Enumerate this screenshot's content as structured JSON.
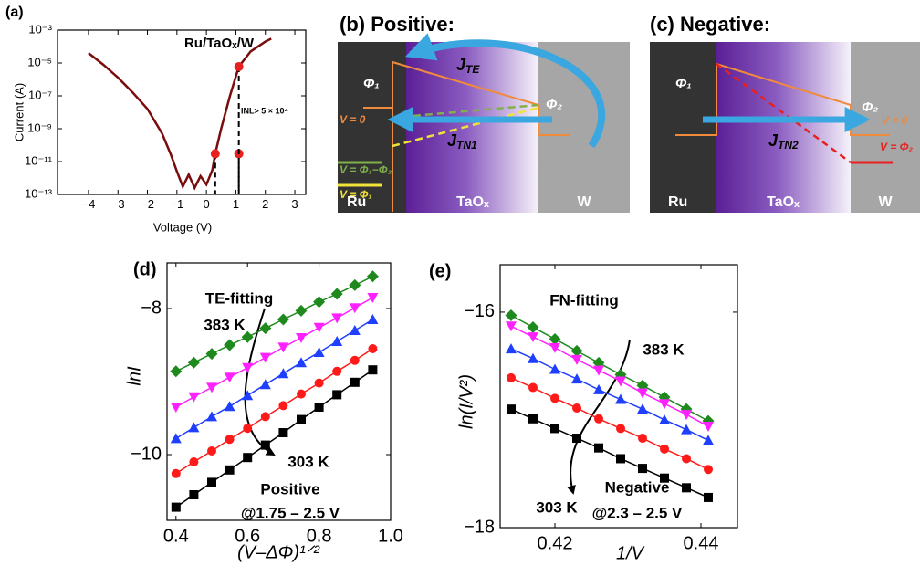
{
  "chart_data": [
    {
      "type": "line",
      "label": "(a)",
      "x_label": "Voltage (V)",
      "y_label": "Current (A)",
      "log_y": true,
      "xlim": [
        -5.05,
        3.37
      ],
      "ylim": [
        1e-13,
        0.001
      ],
      "xticks": [
        {
          "value": -4,
          "label": "−4"
        },
        {
          "value": -3,
          "label": "−3"
        },
        {
          "value": -2,
          "label": "−2"
        },
        {
          "value": -1,
          "label": "−1"
        },
        0,
        1,
        2,
        3
      ],
      "yticks": [
        {
          "value": 1e-13,
          "label": "10⁻¹³"
        },
        {
          "value": 1e-11,
          "label": "10⁻¹¹"
        },
        {
          "value": 1e-09,
          "label": "10⁻⁹"
        },
        {
          "value": 1e-07,
          "label": "10⁻⁷"
        },
        {
          "value": 1e-05,
          "label": "10⁻⁵"
        },
        {
          "value": 0.001,
          "label": "10⁻³"
        }
      ],
      "annotations": [
        "Ru/TaOₓ/W",
        "INL> 5 × 10⁴"
      ],
      "series": [
        {
          "color": "#7b0c0c",
          "x": [
            -4,
            -3.5,
            -3,
            -2.5,
            -2,
            -1.5,
            -1.2,
            -1,
            -0.8,
            -0.6,
            -0.4,
            -0.2,
            0,
            0.2,
            0.3,
            0.5,
            0.8,
            1.1,
            1.5,
            2,
            2.2
          ],
          "values": [
            4e-05,
            8e-06,
            1.3e-06,
            1.6e-07,
            1.6e-08,
            5e-10,
            2.5e-11,
            2.5e-12,
            3e-13,
            1.6e-12,
            2.5e-13,
            1.3e-12,
            4e-13,
            3e-12,
            3e-11,
            1e-09,
            1e-07,
            6e-06,
            5e-05,
            0.0002,
            0.0003
          ]
        },
        {
          "color": "#e8201f",
          "line": false,
          "marker": "circle",
          "x": [
            0.3,
            1.1,
            1.1
          ],
          "values": [
            3e-11,
            3e-11,
            6e-06
          ]
        }
      ]
    },
    {
      "type": "line",
      "label": "(d)",
      "x_label": "(V–ΔΦ)¹ᐟ²",
      "y_label": "lnI",
      "xlim": [
        0.375,
        1.0
      ],
      "ylim": [
        -10.9,
        -7.375
      ],
      "xticks": [
        0.4,
        0.6,
        0.8,
        {
          "value": 1.0,
          "label": "1.0"
        }
      ],
      "yticks": [
        {
          "value": -10,
          "label": "−10"
        },
        {
          "value": -8,
          "label": "−8"
        }
      ],
      "annotations": [
        "TE-fitting",
        "383 K",
        "303 K",
        "Positive",
        "@1.75 – 2.5  V"
      ],
      "x": [
        0.4,
        0.45,
        0.5,
        0.55,
        0.6,
        0.65,
        0.7,
        0.75,
        0.8,
        0.85,
        0.9,
        0.95
      ],
      "series": [
        {
          "color": "#1e8a1e",
          "marker": "diamond",
          "values": [
            -8.86,
            -8.74,
            -8.62,
            -8.5,
            -8.39,
            -8.27,
            -8.15,
            -8.03,
            -7.91,
            -7.8,
            -7.68,
            -7.56
          ]
        },
        {
          "color": "#ff22ff",
          "marker": "triangle-down",
          "values": [
            -9.35,
            -9.21,
            -9.08,
            -8.94,
            -8.81,
            -8.67,
            -8.53,
            -8.4,
            -8.26,
            -8.13,
            -7.99,
            -7.85
          ]
        },
        {
          "color": "#1f3fff",
          "marker": "triangle-up",
          "values": [
            -9.78,
            -9.63,
            -9.48,
            -9.34,
            -9.19,
            -9.04,
            -8.89,
            -8.74,
            -8.6,
            -8.45,
            -8.3,
            -8.15
          ]
        },
        {
          "color": "#ff1a1a",
          "marker": "circle",
          "values": [
            -10.26,
            -10.1,
            -9.95,
            -9.79,
            -9.64,
            -9.48,
            -9.33,
            -9.17,
            -9.02,
            -8.86,
            -8.71,
            -8.55
          ]
        },
        {
          "color": "#000000",
          "marker": "square",
          "values": [
            -10.72,
            -10.55,
            -10.38,
            -10.21,
            -10.04,
            -9.87,
            -9.7,
            -9.52,
            -9.35,
            -9.18,
            -9.01,
            -8.84
          ]
        }
      ]
    },
    {
      "type": "line",
      "label": "(e)",
      "x_label": "1/V",
      "y_label": "ln(I/V²)",
      "xlim": [
        0.4125,
        0.445
      ],
      "ylim": [
        -18,
        -15.56
      ],
      "xticks": [
        0.42,
        0.44
      ],
      "yticks": [
        {
          "value": -18,
          "label": "−18"
        },
        {
          "value": -16,
          "label": "−16"
        }
      ],
      "annotations": [
        "FN-fitting",
        "383 K",
        "303 K",
        "Negative",
        "@2.3 – 2.5  V"
      ],
      "x": [
        0.414,
        0.417,
        0.42,
        0.423,
        0.426,
        0.429,
        0.432,
        0.435,
        0.438,
        0.441
      ],
      "series": [
        {
          "color": "#1e8a1e",
          "marker": "diamond",
          "values": [
            -16.03,
            -16.14,
            -16.25,
            -16.36,
            -16.47,
            -16.58,
            -16.68,
            -16.79,
            -16.9,
            -17.01
          ]
        },
        {
          "color": "#ff22ff",
          "marker": "triangle-down",
          "values": [
            -16.13,
            -16.23,
            -16.33,
            -16.44,
            -16.54,
            -16.64,
            -16.75,
            -16.85,
            -16.95,
            -17.06
          ]
        },
        {
          "color": "#1f3fff",
          "marker": "triangle-up",
          "values": [
            -16.34,
            -16.43,
            -16.53,
            -16.62,
            -16.72,
            -16.81,
            -16.9,
            -17.0,
            -17.09,
            -17.19
          ]
        },
        {
          "color": "#ff1a1a",
          "marker": "circle",
          "values": [
            -16.61,
            -16.7,
            -16.8,
            -16.89,
            -16.99,
            -17.08,
            -17.17,
            -17.27,
            -17.36,
            -17.46
          ]
        },
        {
          "color": "#000000",
          "marker": "square",
          "values": [
            -16.9,
            -16.99,
            -17.08,
            -17.17,
            -17.26,
            -17.36,
            -17.45,
            -17.54,
            -17.63,
            -17.72
          ]
        }
      ]
    }
  ],
  "diagrams": [
    {
      "label": "(b) Positive:",
      "regions": [
        "Ru",
        "TaOₓ",
        "W"
      ],
      "phi": [
        "Φ₁",
        "Φ₂"
      ],
      "currents": [
        {
          "main": "J",
          "sub": "TE"
        },
        {
          "main": "J",
          "sub": "TN1"
        }
      ],
      "voltages": [
        "V = 0",
        "V = Φ₁−Φ₂",
        "V = Φ₁"
      ]
    },
    {
      "label": "(c) Negative:",
      "regions": [
        "Ru",
        "TaOₓ",
        "W"
      ],
      "phi": [
        "Φ₁",
        "Φ₂"
      ],
      "currents": [
        {
          "main": "J",
          "sub": "TN2"
        }
      ],
      "voltages": [
        "V = 0",
        "V = Φ₂"
      ]
    }
  ]
}
